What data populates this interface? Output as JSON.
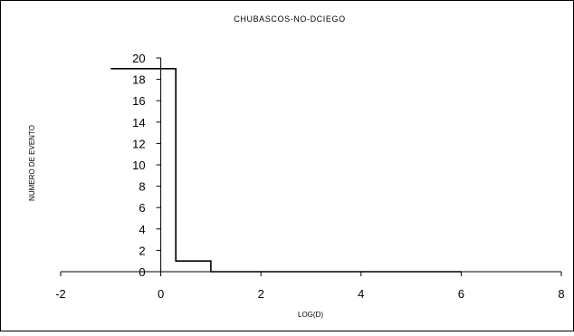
{
  "chart_data": {
    "type": "line",
    "step": true,
    "title": "CHUBASCOS-NO-DCIEGO",
    "xlabel": "LOG(D)",
    "ylabel": "NUMERO DE EVENTO",
    "xlim": [
      -2,
      8
    ],
    "ylim": [
      0,
      20
    ],
    "x_ticks": [
      "-2",
      "0",
      "2",
      "4",
      "6",
      "8"
    ],
    "y_ticks": [
      "0",
      "2",
      "4",
      "6",
      "8",
      "10",
      "12",
      "14",
      "16",
      "18",
      "20"
    ],
    "grid": false,
    "series": [
      {
        "color": "#000000",
        "points": [
          {
            "x": -1,
            "y": 19
          },
          {
            "x": 0.3,
            "y": 19
          },
          {
            "x": 0.3,
            "y": 1
          },
          {
            "x": 1,
            "y": 1
          },
          {
            "x": 1,
            "y": 0
          },
          {
            "x": 6,
            "y": 0
          }
        ]
      }
    ]
  }
}
